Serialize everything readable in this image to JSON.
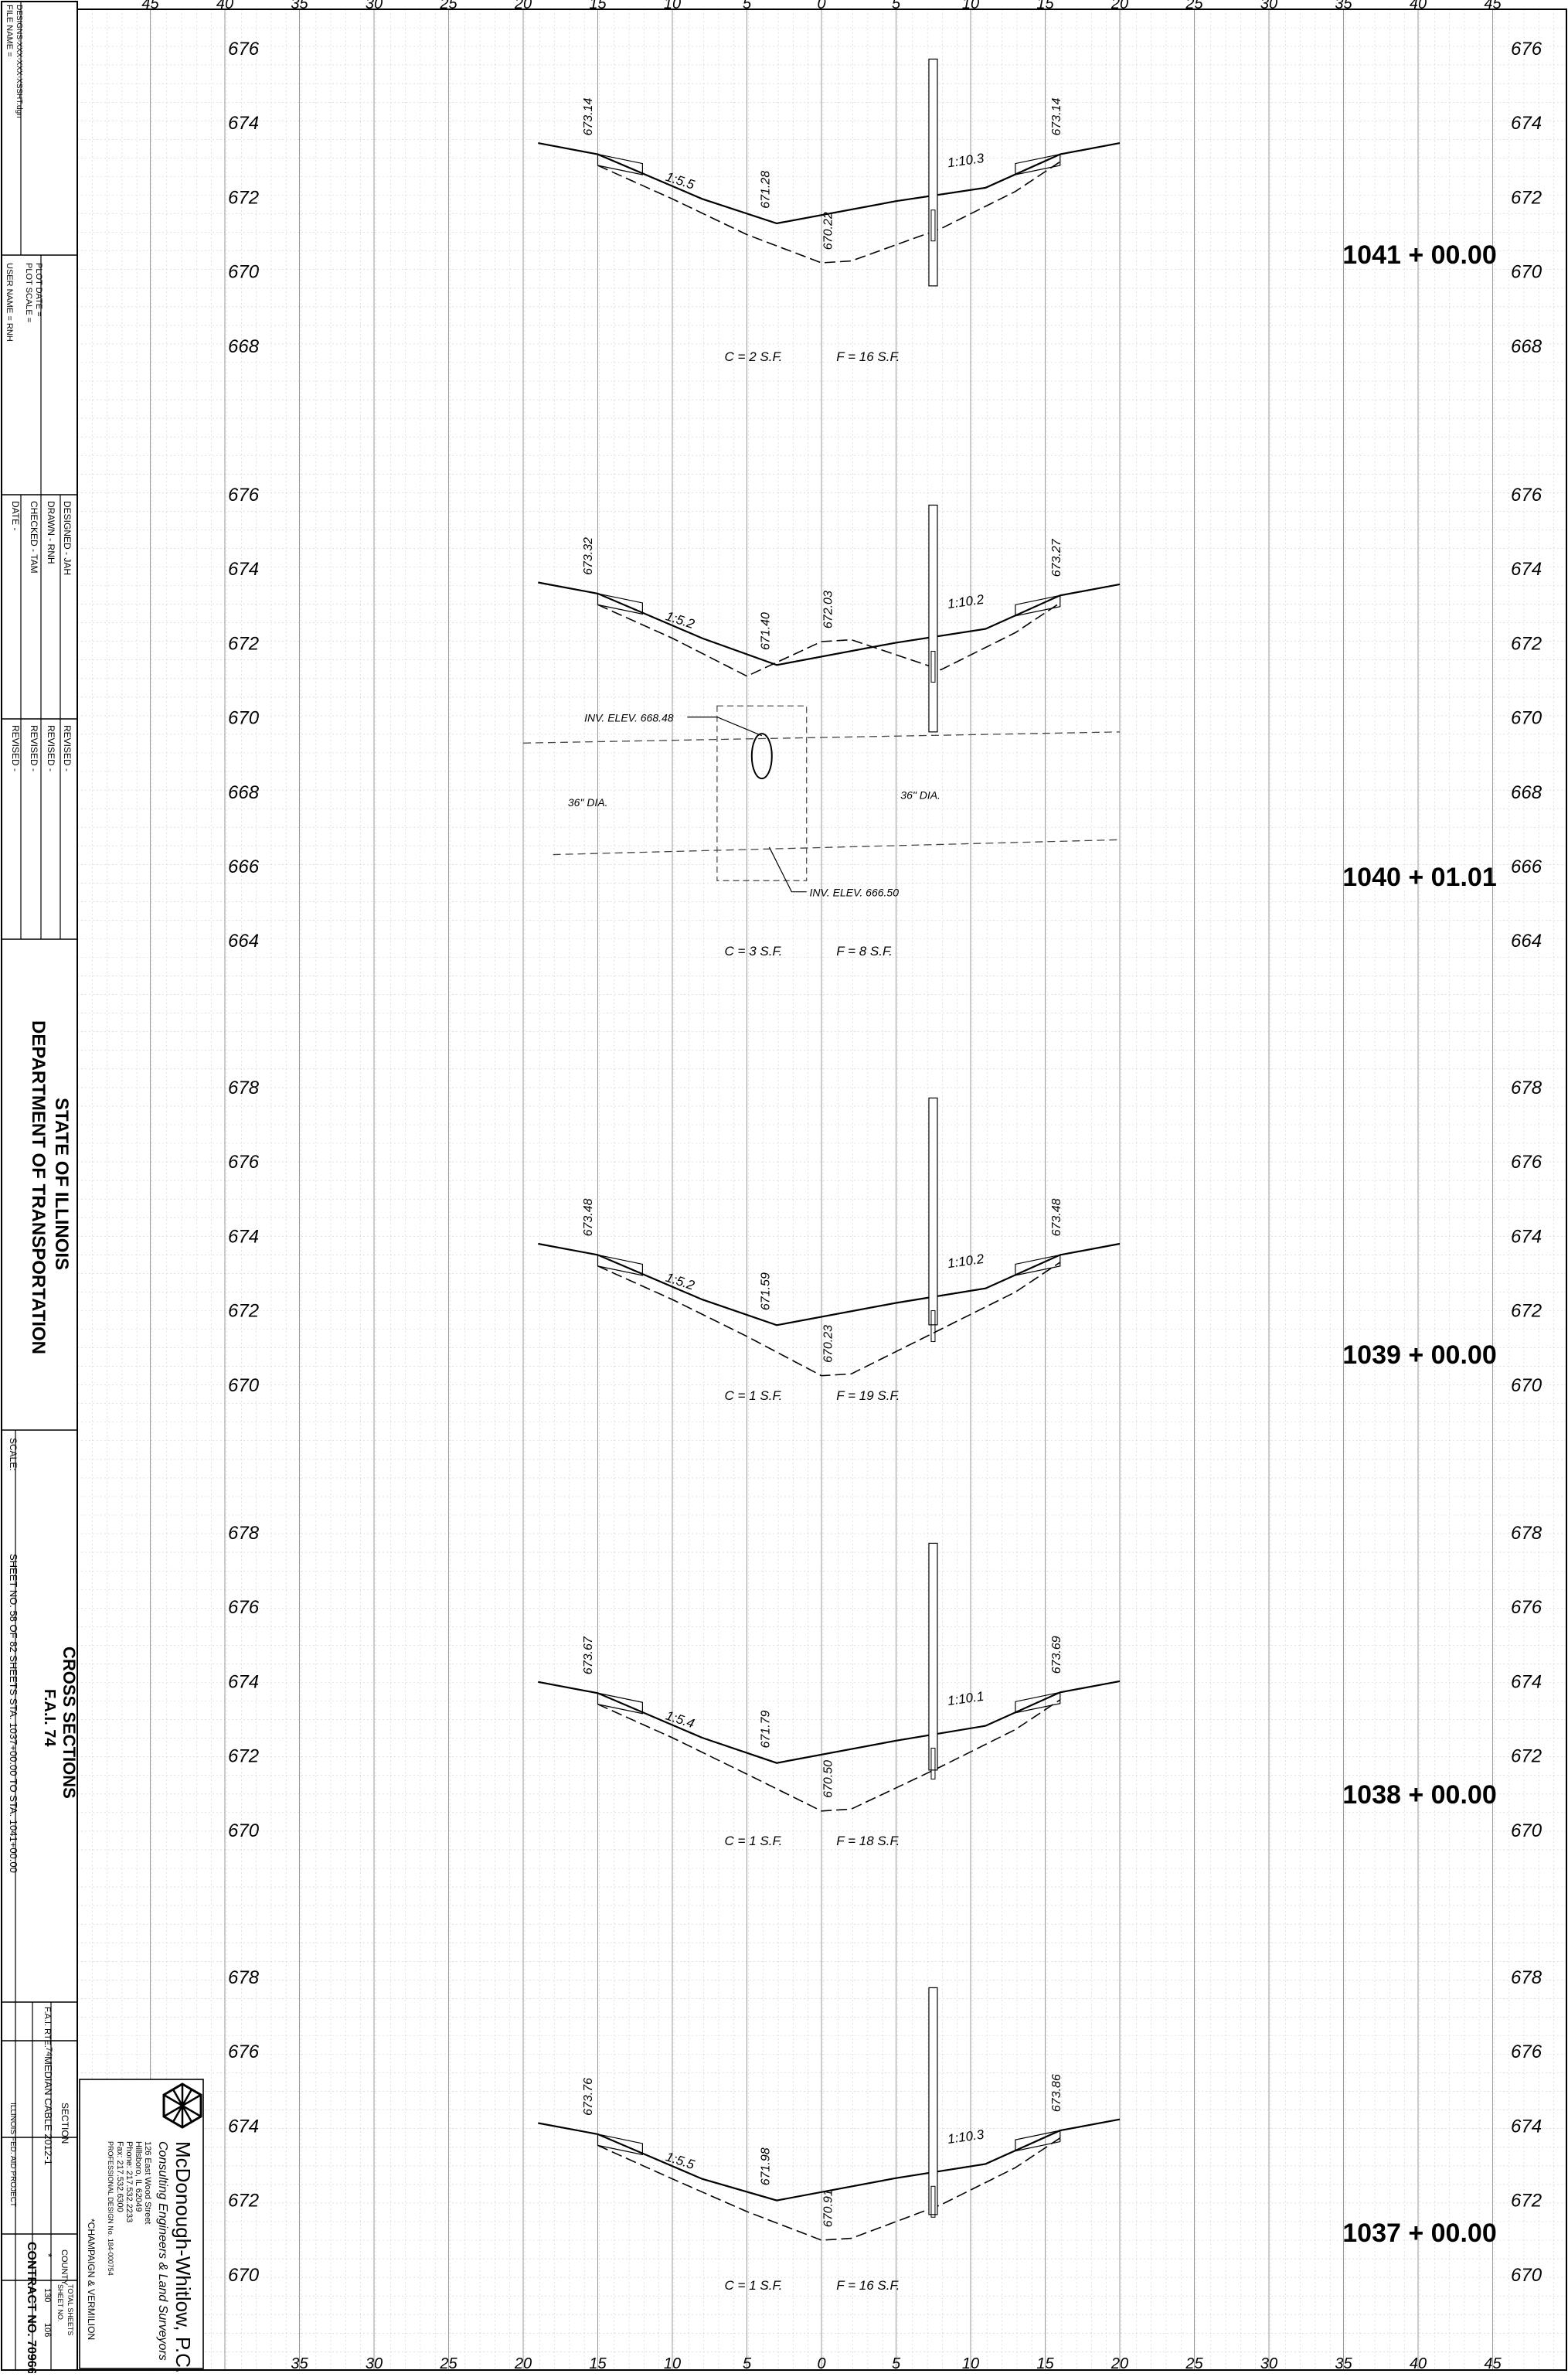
{
  "axis": {
    "ticks_top": [
      "45",
      "40",
      "35",
      "30",
      "25",
      "20",
      "15",
      "10",
      "5",
      "0",
      "5",
      "10",
      "15",
      "20",
      "25",
      "30",
      "35",
      "40",
      "45"
    ],
    "ticks_bottom": [
      "35",
      "30",
      "25",
      "20",
      "15",
      "10",
      "5",
      "0",
      "5",
      "10",
      "15",
      "20",
      "25",
      "30",
      "35",
      "40",
      "45"
    ]
  },
  "sections": [
    {
      "station": "1041 + 00.00",
      "elev_labels": [
        "676",
        "674",
        "672",
        "670",
        "668"
      ],
      "right_elev_labels": [
        "676",
        "674",
        "672",
        "670",
        "668"
      ],
      "annotations": [
        "673.14",
        "673.14",
        "671.28",
        "670.22",
        "1:5.5",
        "1:10.3"
      ],
      "volume_cut": "C = 2 S.F.",
      "volume_fill": "F = 16 S.F."
    },
    {
      "station": "1040 + 01.01",
      "elev_labels": [
        "676",
        "674",
        "672",
        "670",
        "668",
        "666",
        "664"
      ],
      "right_elev_labels": [
        "676",
        "674",
        "672",
        "670",
        "668",
        "666",
        "664"
      ],
      "annotations": [
        "673.32",
        "673.27",
        "671.40",
        "672.03",
        "1:5.2",
        "1:10.2"
      ],
      "culvert": {
        "inv_upper": "INV. ELEV. 668.48",
        "inv_lower": "INV. ELEV. 666.50",
        "pipe_left": "36\" DIA.",
        "pipe_right": "36\" DIA."
      },
      "volume_cut": "C = 3 S.F.",
      "volume_fill": "F = 8 S.F."
    },
    {
      "station": "1039 + 00.00",
      "elev_labels": [
        "678",
        "676",
        "674",
        "672",
        "670"
      ],
      "right_elev_labels": [
        "678",
        "676",
        "674",
        "672",
        "670"
      ],
      "annotations": [
        "673.48",
        "673.48",
        "671.59",
        "670.23",
        "1:5.2",
        "1:10.2"
      ],
      "volume_cut": "C = 1 S.F.",
      "volume_fill": "F = 19 S.F."
    },
    {
      "station": "1038 + 00.00",
      "elev_labels": [
        "678",
        "676",
        "674",
        "672",
        "670"
      ],
      "right_elev_labels": [
        "678",
        "676",
        "674",
        "672",
        "670"
      ],
      "annotations": [
        "673.67",
        "673.69",
        "671.79",
        "670.50",
        "1:5.4",
        "1:10.1"
      ],
      "volume_cut": "C = 1 S.F.",
      "volume_fill": "F = 18 S.F."
    },
    {
      "station": "1037 + 00.00",
      "elev_labels": [
        "678",
        "676",
        "674",
        "672",
        "670"
      ],
      "right_elev_labels": [
        "678",
        "676",
        "674",
        "672",
        "670"
      ],
      "annotations": [
        "673.76",
        "673.86",
        "671.98",
        "670.91",
        "1:5.5",
        "1:10.3"
      ],
      "volume_cut": "C = 1 S.F.",
      "volume_fill": "F = 16 S.F."
    }
  ],
  "title_block": {
    "file_name": "FILE NAME =",
    "file_path": "DESIGNS-XXX-XXX-XSSHT.dgn",
    "user_name": "USER NAME = RNH",
    "plot_scale": "PLOT SCALE =",
    "plot_date": "PLOT DATE =",
    "designed": "DESIGNED - JAH",
    "drawn": "DRAWN - RNH",
    "checked": "CHECKED - TAM",
    "date": "DATE -",
    "revised1": "REVISED -",
    "revised2": "REVISED -",
    "revised3": "REVISED -",
    "revised4": "REVISED -",
    "agency_line1": "STATE OF ILLINOIS",
    "agency_line2": "DEPARTMENT OF TRANSPORTATION",
    "scale": "SCALE:",
    "sheet_info": "SHEET NO. 58 OF 82 SHEETS   STA. 1037+00.00 TO STA. 1041+00.00",
    "title1": "CROSS SECTIONS",
    "title2": "F.A.I. 74",
    "fai_rte": "F.A.I. RTE.",
    "rte_num": "74",
    "section_hdr": "SECTION",
    "section_val": "MEDIAN CABLE 2012-1",
    "county_hdr": "COUNTY",
    "county_val": "*",
    "total_sheets_hdr": "TOTAL SHEETS",
    "sheet_no_hdr": "SHEET NO.",
    "total_sheets": "130",
    "sheet_no": "106",
    "contract": "CONTRACT NO. 70966",
    "project": "ILLINOIS FED. AID PROJECT",
    "counties": "*CHAMPAIGN & VERMILION",
    "firm_name": "McDonough-Whitlow, P.C.",
    "firm_tag": "Consulting Engineers & Land Surveyors",
    "firm_addr1": "126 East Wood Street",
    "firm_addr2": "Hillsboro, IL 62049",
    "firm_phone": "Phone: 217.532.2233",
    "firm_fax": "Fax: 217.532.6300",
    "firm_license": "PROFESSIONAL DESIGN No. 184-000754"
  }
}
